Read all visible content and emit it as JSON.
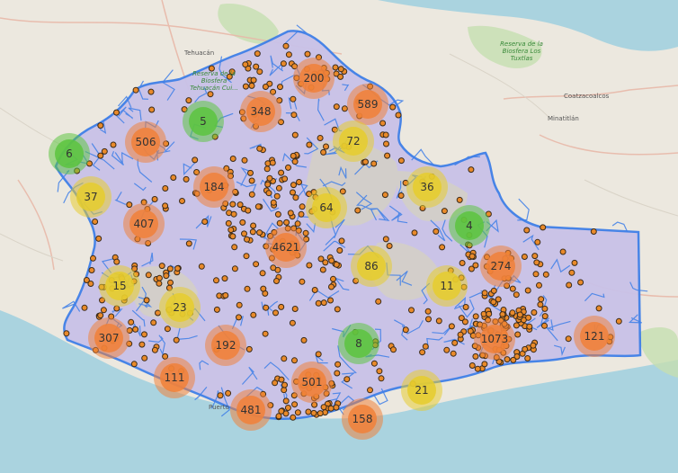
{
  "labels": [
    {
      "text": "Tehuacán",
      "class": "",
      "pos": "tehuacan"
    },
    {
      "text": "Coatzacoalcos",
      "class": "",
      "pos": "coatza"
    },
    {
      "text": "Minatitlán",
      "class": "",
      "pos": "minat"
    },
    {
      "text": "Puerto",
      "class": "",
      "pos": "puerto"
    },
    {
      "text": "Reserva de la Biosfera Tehuacán Cui...",
      "class": "green",
      "pos": "res1"
    },
    {
      "text": "Reserva de la Biosfera Los Tuxtlas",
      "class": "green",
      "pos": "res2"
    }
  ],
  "clusters": [
    {
      "count": "200",
      "level": "high"
    },
    {
      "count": "589",
      "level": "high"
    },
    {
      "count": "348",
      "level": "high"
    },
    {
      "count": "5",
      "level": "low"
    },
    {
      "count": "506",
      "level": "high"
    },
    {
      "count": "72",
      "level": "mid"
    },
    {
      "count": "6",
      "level": "low"
    },
    {
      "count": "37",
      "level": "mid"
    },
    {
      "count": "184",
      "level": "high"
    },
    {
      "count": "36",
      "level": "mid"
    },
    {
      "count": "64",
      "level": "mid"
    },
    {
      "count": "407",
      "level": "high"
    },
    {
      "count": "4",
      "level": "low"
    },
    {
      "count": "4621",
      "level": "high"
    },
    {
      "count": "274",
      "level": "high"
    },
    {
      "count": "86",
      "level": "mid"
    },
    {
      "count": "15",
      "level": "mid"
    },
    {
      "count": "11",
      "level": "mid"
    },
    {
      "count": "23",
      "level": "mid"
    },
    {
      "count": "307",
      "level": "high"
    },
    {
      "count": "1073",
      "level": "high"
    },
    {
      "count": "121",
      "level": "high"
    },
    {
      "count": "192",
      "level": "high"
    },
    {
      "count": "8",
      "level": "low"
    },
    {
      "count": "111",
      "level": "high"
    },
    {
      "count": "501",
      "level": "high"
    },
    {
      "count": "21",
      "level": "mid"
    },
    {
      "count": "481",
      "level": "high"
    },
    {
      "count": "158",
      "level": "high"
    }
  ],
  "colors": {
    "land": "#ece8df",
    "sea": "#aad3df",
    "region_fill": "#c9c2e8",
    "region_stroke": "#3f7fe8",
    "high": "#f0813a",
    "mid": "#e6cc2e",
    "low": "#5cc43f",
    "point": "#e98a2a"
  }
}
